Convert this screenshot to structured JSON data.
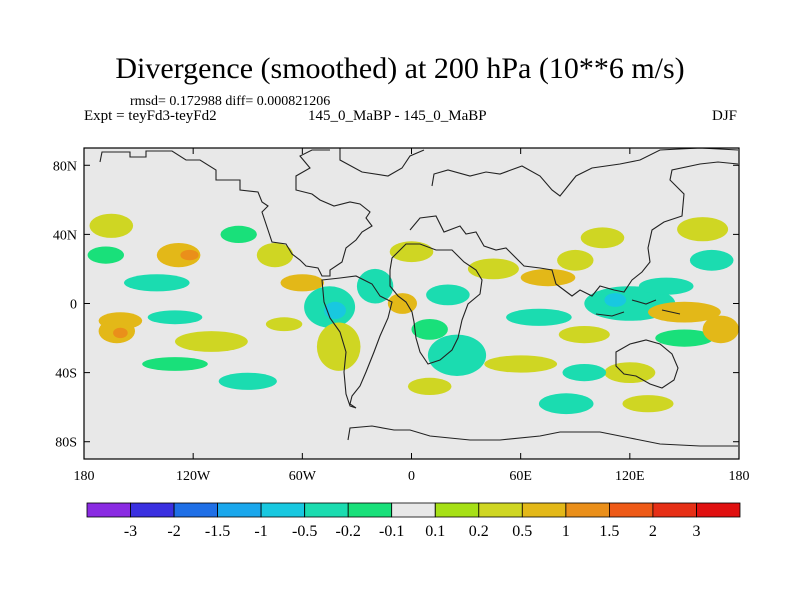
{
  "chart_data": {
    "type": "heatmap",
    "title": "Divergence (smoothed) at 200 hPa (10**6 m/s)",
    "stats_text": "rmsd= 0.172988 diff= 0.000821206",
    "expt_text": "Expt = teyFd3-teyFd2",
    "case_text": "145_0_MaBP - 145_0_MaBP",
    "season": "DJF",
    "xlim": [
      -180,
      180
    ],
    "ylim": [
      -90,
      90
    ],
    "x_ticks": [
      {
        "value": -180,
        "label": "180"
      },
      {
        "value": -120,
        "label": "120W"
      },
      {
        "value": -60,
        "label": "60W"
      },
      {
        "value": 0,
        "label": "0"
      },
      {
        "value": 60,
        "label": "60E"
      },
      {
        "value": 120,
        "label": "120E"
      },
      {
        "value": 180,
        "label": "180"
      }
    ],
    "y_ticks": [
      {
        "value": 80,
        "label": "80N"
      },
      {
        "value": 40,
        "label": "40N"
      },
      {
        "value": 0,
        "label": "0"
      },
      {
        "value": -40,
        "label": "40S"
      },
      {
        "value": -80,
        "label": "80S"
      }
    ],
    "colorbar": {
      "labels": [
        "-3",
        "-2",
        "-1.5",
        "-1",
        "-0.5",
        "-0.2",
        "-0.1",
        "0.1",
        "0.2",
        "0.5",
        "1",
        "1.5",
        "2",
        "3"
      ],
      "colors": [
        "#8a2be2",
        "#3a30e0",
        "#1f6fe6",
        "#1aa7ec",
        "#18c8e0",
        "#1bdcb0",
        "#19e07a",
        "#e8e8e8",
        "#a6e016",
        "#cfd623",
        "#e3b818",
        "#ea8f1a",
        "#ee5a17",
        "#e62f16",
        "#e01010"
      ]
    },
    "anomalies": [
      {
        "lon": -165,
        "lat": 45,
        "rlon": 12,
        "rlat": 7,
        "value": 0.25
      },
      {
        "lon": -168,
        "lat": 28,
        "rlon": 10,
        "rlat": 5,
        "value": -0.15
      },
      {
        "lon": -128,
        "lat": 28,
        "rlon": 12,
        "rlat": 7,
        "value": 0.6
      },
      {
        "lon": -122,
        "lat": 28,
        "rlon": 5,
        "rlat": 3,
        "value": 1.2
      },
      {
        "lon": -140,
        "lat": 12,
        "rlon": 18,
        "rlat": 5,
        "value": -0.25
      },
      {
        "lon": -160,
        "lat": -10,
        "rlon": 12,
        "rlat": 5,
        "value": 0.6
      },
      {
        "lon": -162,
        "lat": -16,
        "rlon": 10,
        "rlat": 7,
        "value": 0.7
      },
      {
        "lon": -160,
        "lat": -17,
        "rlon": 4,
        "rlat": 3,
        "value": 1.3
      },
      {
        "lon": -130,
        "lat": -8,
        "rlon": 15,
        "rlat": 4,
        "value": -0.3
      },
      {
        "lon": -110,
        "lat": -22,
        "rlon": 20,
        "rlat": 6,
        "value": 0.45
      },
      {
        "lon": -130,
        "lat": -35,
        "rlon": 18,
        "rlat": 4,
        "value": -0.2
      },
      {
        "lon": -90,
        "lat": -45,
        "rlon": 16,
        "rlat": 5,
        "value": -0.25
      },
      {
        "lon": -95,
        "lat": 40,
        "rlon": 10,
        "rlat": 5,
        "value": -0.2
      },
      {
        "lon": -75,
        "lat": 28,
        "rlon": 10,
        "rlat": 7,
        "value": 0.35
      },
      {
        "lon": -60,
        "lat": 12,
        "rlon": 12,
        "rlat": 5,
        "value": 0.5
      },
      {
        "lon": -45,
        "lat": -2,
        "rlon": 14,
        "rlat": 12,
        "value": -0.5
      },
      {
        "lon": -42,
        "lat": -4,
        "rlon": 6,
        "rlat": 5,
        "value": -1.0
      },
      {
        "lon": -40,
        "lat": -25,
        "rlon": 12,
        "rlat": 14,
        "value": 0.35
      },
      {
        "lon": -70,
        "lat": -12,
        "rlon": 10,
        "rlat": 4,
        "value": 0.4
      },
      {
        "lon": -20,
        "lat": 10,
        "rlon": 10,
        "rlat": 10,
        "value": -0.3
      },
      {
        "lon": 0,
        "lat": 30,
        "rlon": 12,
        "rlat": 6,
        "value": 0.4
      },
      {
        "lon": -5,
        "lat": 0,
        "rlon": 8,
        "rlat": 6,
        "value": 0.5
      },
      {
        "lon": 10,
        "lat": -15,
        "rlon": 10,
        "rlat": 6,
        "value": -0.2
      },
      {
        "lon": 20,
        "lat": 5,
        "rlon": 12,
        "rlat": 6,
        "value": -0.3
      },
      {
        "lon": 25,
        "lat": -30,
        "rlon": 16,
        "rlat": 12,
        "value": -0.25
      },
      {
        "lon": 10,
        "lat": -48,
        "rlon": 12,
        "rlat": 5,
        "value": 0.3
      },
      {
        "lon": 45,
        "lat": 20,
        "rlon": 14,
        "rlat": 6,
        "value": 0.3
      },
      {
        "lon": 75,
        "lat": 15,
        "rlon": 15,
        "rlat": 5,
        "value": 0.5
      },
      {
        "lon": 90,
        "lat": 25,
        "rlon": 10,
        "rlat": 6,
        "value": 0.35
      },
      {
        "lon": 105,
        "lat": 38,
        "rlon": 12,
        "rlat": 6,
        "value": 0.45
      },
      {
        "lon": 120,
        "lat": 0,
        "rlon": 25,
        "rlat": 10,
        "value": -0.4
      },
      {
        "lon": 112,
        "lat": 2,
        "rlon": 6,
        "rlat": 4,
        "value": -0.7
      },
      {
        "lon": 150,
        "lat": -5,
        "rlon": 20,
        "rlat": 6,
        "value": 0.7
      },
      {
        "lon": 165,
        "lat": 25,
        "rlon": 12,
        "rlat": 6,
        "value": -0.3
      },
      {
        "lon": 160,
        "lat": 43,
        "rlon": 14,
        "rlat": 7,
        "value": 0.45
      },
      {
        "lon": 140,
        "lat": 10,
        "rlon": 15,
        "rlat": 5,
        "value": -0.25
      },
      {
        "lon": 70,
        "lat": -8,
        "rlon": 18,
        "rlat": 5,
        "value": -0.3
      },
      {
        "lon": 95,
        "lat": -18,
        "rlon": 14,
        "rlat": 5,
        "value": 0.45
      },
      {
        "lon": 150,
        "lat": -20,
        "rlon": 16,
        "rlat": 5,
        "value": -0.2
      },
      {
        "lon": 60,
        "lat": -35,
        "rlon": 20,
        "rlat": 5,
        "value": 0.3
      },
      {
        "lon": 120,
        "lat": -40,
        "rlon": 14,
        "rlat": 6,
        "value": 0.35
      },
      {
        "lon": 95,
        "lat": -40,
        "rlon": 12,
        "rlat": 5,
        "value": -0.3
      },
      {
        "lon": 85,
        "lat": -58,
        "rlon": 15,
        "rlat": 6,
        "value": -0.3
      },
      {
        "lon": 130,
        "lat": -58,
        "rlon": 14,
        "rlat": 5,
        "value": 0.3
      },
      {
        "lon": 170,
        "lat": -15,
        "rlon": 10,
        "rlat": 8,
        "value": 0.55
      }
    ]
  }
}
